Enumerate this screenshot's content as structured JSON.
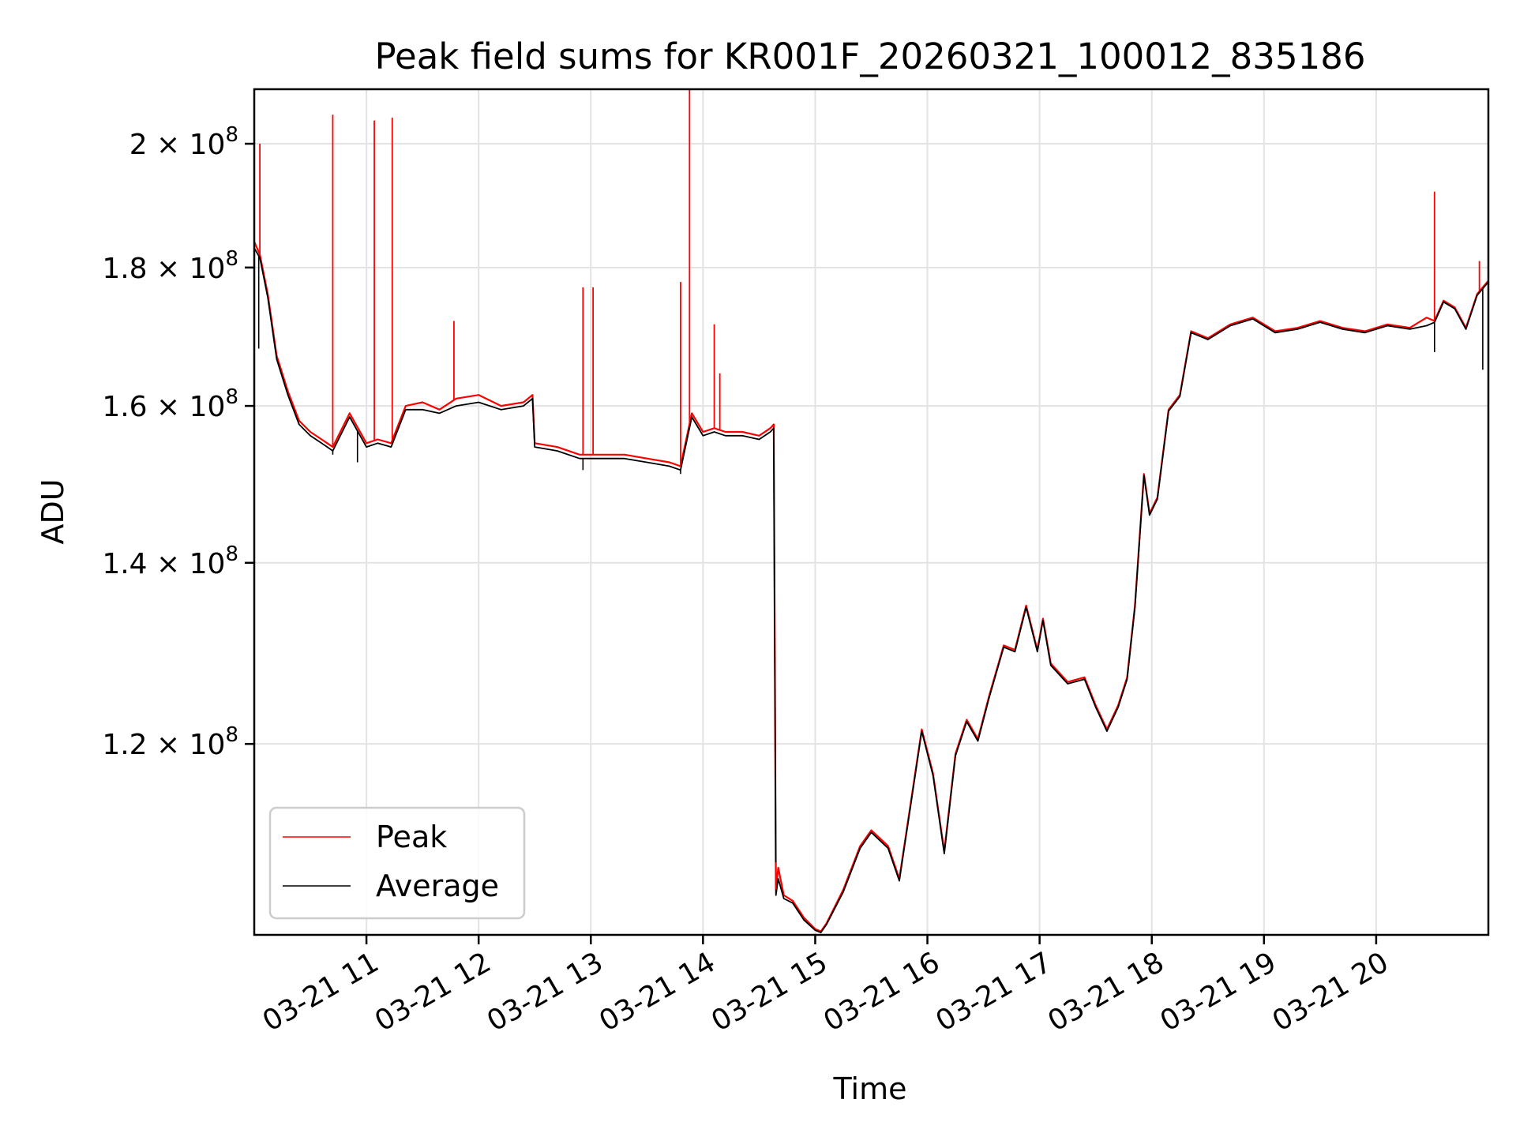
{
  "chart_data": {
    "type": "line",
    "title": "Peak field sums for KR001F_20260321_100012_835186",
    "xlabel": "Time",
    "ylabel": "ADU",
    "yscale": "log",
    "ylim": [
      102000000,
      209500000
    ],
    "xlim_hours": [
      10.0,
      21.0
    ],
    "grid": true,
    "legend": "lower-left",
    "colors": {
      "peak": "#ff0000",
      "average": "#000000"
    },
    "x_ticks": [
      {
        "h": 11,
        "label": "03-21 11"
      },
      {
        "h": 12,
        "label": "03-21 12"
      },
      {
        "h": 13,
        "label": "03-21 13"
      },
      {
        "h": 14,
        "label": "03-21 14"
      },
      {
        "h": 15,
        "label": "03-21 15"
      },
      {
        "h": 16,
        "label": "03-21 16"
      },
      {
        "h": 17,
        "label": "03-21 17"
      },
      {
        "h": 18,
        "label": "03-21 18"
      },
      {
        "h": 19,
        "label": "03-21 19"
      },
      {
        "h": 20,
        "label": "03-21 20"
      }
    ],
    "y_ticks": [
      {
        "value": 120000000,
        "mant": "1.2",
        "exp": "8"
      },
      {
        "value": 140000000,
        "mant": "1.4",
        "exp": "8"
      },
      {
        "value": 160000000,
        "mant": "1.6",
        "exp": "8"
      },
      {
        "value": 180000000,
        "mant": "1.8",
        "exp": "8"
      },
      {
        "value": 200000000,
        "mant": "2",
        "exp": "8"
      }
    ],
    "series": [
      {
        "name": "Peak",
        "x_hours": [
          10.0,
          10.05,
          10.12,
          10.2,
          10.3,
          10.4,
          10.5,
          10.6,
          10.65,
          10.7,
          10.85,
          11.0,
          11.1,
          11.22,
          11.35,
          11.5,
          11.65,
          11.8,
          12.0,
          12.2,
          12.4,
          12.48,
          12.5,
          12.7,
          12.9,
          13.1,
          13.3,
          13.5,
          13.7,
          13.8,
          13.9,
          14.0,
          14.1,
          14.2,
          14.35,
          14.5,
          14.6,
          14.63,
          14.65,
          14.67,
          14.72,
          14.8,
          14.9,
          15.0,
          15.05,
          15.1,
          15.25,
          15.4,
          15.5,
          15.65,
          15.75,
          15.85,
          15.95,
          16.05,
          16.15,
          16.25,
          16.35,
          16.45,
          16.55,
          16.68,
          16.78,
          16.88,
          16.98,
          17.03,
          17.1,
          17.25,
          17.4,
          17.5,
          17.6,
          17.7,
          17.78,
          17.85,
          17.93,
          17.98,
          18.05,
          18.15,
          18.25,
          18.35,
          18.5,
          18.7,
          18.9,
          19.1,
          19.3,
          19.5,
          19.7,
          19.9,
          20.1,
          20.3,
          20.45,
          20.52,
          20.6,
          20.7,
          20.8,
          20.9,
          21.0
        ],
        "values": [
          184000000,
          182000000,
          176000000,
          167000000,
          162000000,
          158000000,
          156500000,
          155500000,
          155000000,
          154500000,
          159000000,
          155000000,
          155500000,
          155000000,
          160000000,
          160500000,
          159500000,
          161000000,
          161500000,
          160000000,
          160500000,
          161500000,
          155000000,
          154500000,
          153500000,
          153500000,
          153500000,
          153000000,
          152500000,
          152000000,
          159000000,
          156500000,
          157000000,
          156500000,
          156500000,
          156000000,
          157000000,
          157500000,
          106000000,
          108000000,
          105500000,
          105000000,
          103500000,
          102500000,
          102300000,
          103000000,
          106000000,
          110000000,
          111500000,
          110000000,
          107000000,
          114000000,
          121500000,
          117000000,
          109500000,
          119000000,
          122500000,
          120500000,
          125000000,
          130500000,
          130000000,
          135000000,
          130000000,
          133500000,
          128500000,
          126500000,
          127000000,
          124000000,
          121500000,
          124000000,
          127000000,
          135000000,
          151000000,
          146000000,
          148000000,
          159500000,
          161500000,
          170500000,
          169500000,
          171500000,
          172500000,
          170500000,
          171000000,
          172000000,
          171000000,
          170500000,
          171500000,
          171000000,
          172500000,
          172000000,
          175000000,
          174000000,
          171000000,
          176000000,
          178000000
        ]
      },
      {
        "name": "Average",
        "x_hours": [
          10.0,
          10.05,
          10.12,
          10.2,
          10.3,
          10.4,
          10.5,
          10.6,
          10.65,
          10.7,
          10.85,
          11.0,
          11.1,
          11.22,
          11.35,
          11.5,
          11.65,
          11.8,
          12.0,
          12.2,
          12.4,
          12.48,
          12.5,
          12.7,
          12.9,
          13.1,
          13.3,
          13.5,
          13.7,
          13.8,
          13.9,
          14.0,
          14.1,
          14.2,
          14.35,
          14.5,
          14.6,
          14.63,
          14.65,
          14.67,
          14.72,
          14.8,
          14.9,
          15.0,
          15.05,
          15.1,
          15.25,
          15.4,
          15.5,
          15.65,
          15.75,
          15.85,
          15.95,
          16.05,
          16.15,
          16.25,
          16.35,
          16.45,
          16.55,
          16.68,
          16.78,
          16.88,
          16.98,
          17.03,
          17.1,
          17.25,
          17.4,
          17.5,
          17.6,
          17.7,
          17.78,
          17.85,
          17.93,
          17.98,
          18.05,
          18.15,
          18.25,
          18.35,
          18.5,
          18.7,
          18.9,
          19.1,
          19.3,
          19.5,
          19.7,
          19.9,
          20.1,
          20.3,
          20.45,
          20.52,
          20.6,
          20.7,
          20.8,
          20.9,
          21.0
        ],
        "values": [
          183000000,
          181500000,
          175500000,
          166500000,
          161500000,
          157500000,
          156000000,
          155000000,
          154500000,
          154000000,
          158500000,
          154500000,
          155000000,
          154500000,
          159500000,
          159500000,
          159000000,
          160000000,
          160500000,
          159500000,
          160000000,
          161000000,
          154500000,
          154000000,
          153000000,
          153000000,
          153000000,
          152500000,
          152000000,
          151500000,
          158500000,
          156000000,
          156500000,
          156000000,
          156000000,
          155500000,
          156500000,
          157000000,
          105500000,
          107000000,
          105200000,
          104800000,
          103300000,
          102400000,
          102200000,
          102900000,
          105800000,
          109800000,
          111300000,
          109800000,
          106800000,
          113800000,
          121300000,
          116800000,
          109300000,
          118800000,
          122300000,
          120300000,
          124800000,
          130300000,
          129800000,
          134800000,
          129800000,
          133300000,
          128300000,
          126300000,
          126800000,
          123800000,
          121300000,
          123800000,
          126800000,
          134800000,
          150800000,
          145800000,
          147800000,
          159300000,
          161300000,
          170300000,
          169300000,
          171300000,
          172300000,
          170300000,
          170800000,
          171800000,
          170800000,
          170300000,
          171300000,
          170800000,
          171300000,
          171800000,
          174800000,
          173800000,
          170800000,
          175800000,
          177800000
        ]
      }
    ],
    "spikes": {
      "peak": [
        {
          "h": 10.05,
          "v": 200000000
        },
        {
          "h": 10.7,
          "v": 205000000
        },
        {
          "h": 11.07,
          "v": 204000000
        },
        {
          "h": 11.23,
          "v": 204500000
        },
        {
          "h": 11.78,
          "v": 172000000
        },
        {
          "h": 12.93,
          "v": 177000000
        },
        {
          "h": 13.02,
          "v": 177000000
        },
        {
          "h": 13.8,
          "v": 177800000
        },
        {
          "h": 13.88,
          "v": 209500000
        },
        {
          "h": 14.1,
          "v": 171500000
        },
        {
          "h": 14.15,
          "v": 164500000
        },
        {
          "h": 14.65,
          "v": 108500000
        },
        {
          "h": 20.52,
          "v": 192000000
        },
        {
          "h": 20.92,
          "v": 181000000
        }
      ],
      "average": [
        {
          "h": 10.04,
          "v": 168000000
        },
        {
          "h": 10.7,
          "v": 153500000
        },
        {
          "h": 10.92,
          "v": 152500000
        },
        {
          "h": 12.93,
          "v": 151500000
        },
        {
          "h": 13.8,
          "v": 151000000
        },
        {
          "h": 20.52,
          "v": 167500000
        },
        {
          "h": 20.95,
          "v": 165000000
        }
      ]
    },
    "legend_entries": [
      {
        "label": "Peak",
        "color": "#ff0000"
      },
      {
        "label": "Average",
        "color": "#000000"
      }
    ]
  }
}
